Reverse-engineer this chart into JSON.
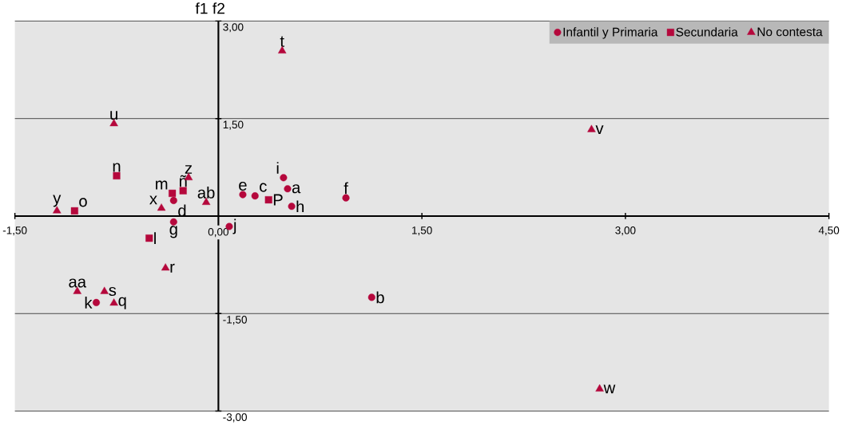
{
  "chart_data": {
    "type": "scatter",
    "title": "f1 f2",
    "xlim": [
      -1.5,
      4.5
    ],
    "ylim": [
      -3.0,
      3.0
    ],
    "xticks": [
      {
        "value": -1.5,
        "label": "-1,50"
      },
      {
        "value": 0,
        "label": "0,00"
      },
      {
        "value": 1.5,
        "label": "1,50"
      },
      {
        "value": 3.0,
        "label": "3,00"
      },
      {
        "value": 4.5,
        "label": "4,50"
      }
    ],
    "yticks": [
      {
        "value": -3.0,
        "label": "-3,00"
      },
      {
        "value": -1.5,
        "label": "-1,50"
      },
      {
        "value": 1.5,
        "label": "1,50"
      },
      {
        "value": 3.0,
        "label": "3,00"
      }
    ],
    "grid": "y",
    "legend": "top right",
    "series": [
      {
        "name": "Infantil y Primaria",
        "color": "#b5083c",
        "marker": "circle",
        "x": [
          0.51,
          0.48,
          0.18,
          0.27,
          0.54,
          0.94,
          -0.33,
          -0.33,
          0.08,
          1.13,
          -0.9
        ],
        "values": [
          0.42,
          0.59,
          0.33,
          0.31,
          0.15,
          0.28,
          0.24,
          -0.09,
          -0.16,
          -1.25,
          -1.33
        ]
      },
      {
        "name": "Secundaria",
        "color": "#b5083c",
        "marker": "square",
        "x": [
          -1.06,
          -0.75,
          -0.34,
          -0.26,
          -0.51,
          0.37
        ],
        "values": [
          0.08,
          0.62,
          0.35,
          0.39,
          -0.34,
          0.25
        ]
      },
      {
        "name": "No contesta",
        "color": "#b5083c",
        "marker": "triangle",
        "x": [
          0.47,
          -0.77,
          2.75,
          -0.22,
          -0.09,
          -0.42,
          -1.19,
          -0.39,
          -1.04,
          -0.84,
          -0.77,
          2.81
        ],
        "values": [
          2.54,
          1.42,
          1.33,
          0.59,
          0.21,
          0.12,
          0.08,
          -0.8,
          -1.16,
          -1.16,
          -1.34,
          -2.66
        ]
      }
    ],
    "annotations": [
      {
        "text": "a",
        "x": 0.51,
        "y": 0.42
      },
      {
        "text": "i",
        "x": 0.48,
        "y": 0.59
      },
      {
        "text": "e",
        "x": 0.18,
        "y": 0.33
      },
      {
        "text": "c",
        "x": 0.27,
        "y": 0.31
      },
      {
        "text": "h",
        "x": 0.54,
        "y": 0.15
      },
      {
        "text": "f",
        "x": 0.94,
        "y": 0.28
      },
      {
        "text": "d",
        "x": -0.33,
        "y": 0.24
      },
      {
        "text": "g",
        "x": -0.33,
        "y": -0.09
      },
      {
        "text": "j",
        "x": 0.08,
        "y": -0.16
      },
      {
        "text": "b",
        "x": 1.13,
        "y": -1.25
      },
      {
        "text": "k",
        "x": -0.9,
        "y": -1.33
      },
      {
        "text": "o",
        "x": -1.06,
        "y": 0.08
      },
      {
        "text": "n",
        "x": -0.75,
        "y": 0.62
      },
      {
        "text": "m",
        "x": -0.34,
        "y": 0.35
      },
      {
        "text": "ñ",
        "x": -0.26,
        "y": 0.39
      },
      {
        "text": "l",
        "x": -0.51,
        "y": -0.34
      },
      {
        "text": "P",
        "x": 0.37,
        "y": 0.25
      },
      {
        "text": "t",
        "x": 0.47,
        "y": 2.54
      },
      {
        "text": "u",
        "x": -0.77,
        "y": 1.42
      },
      {
        "text": "v",
        "x": 2.75,
        "y": 1.33
      },
      {
        "text": "z",
        "x": -0.22,
        "y": 0.59
      },
      {
        "text": "ab",
        "x": -0.09,
        "y": 0.21
      },
      {
        "text": "x",
        "x": -0.42,
        "y": 0.12
      },
      {
        "text": "y",
        "x": -1.19,
        "y": 0.08
      },
      {
        "text": "r",
        "x": -0.39,
        "y": -0.8
      },
      {
        "text": "aa",
        "x": -1.04,
        "y": -1.16
      },
      {
        "text": "s",
        "x": -0.84,
        "y": -1.16
      },
      {
        "text": "q",
        "x": -0.77,
        "y": -1.34
      },
      {
        "text": "w",
        "x": 2.81,
        "y": -2.66
      }
    ]
  }
}
